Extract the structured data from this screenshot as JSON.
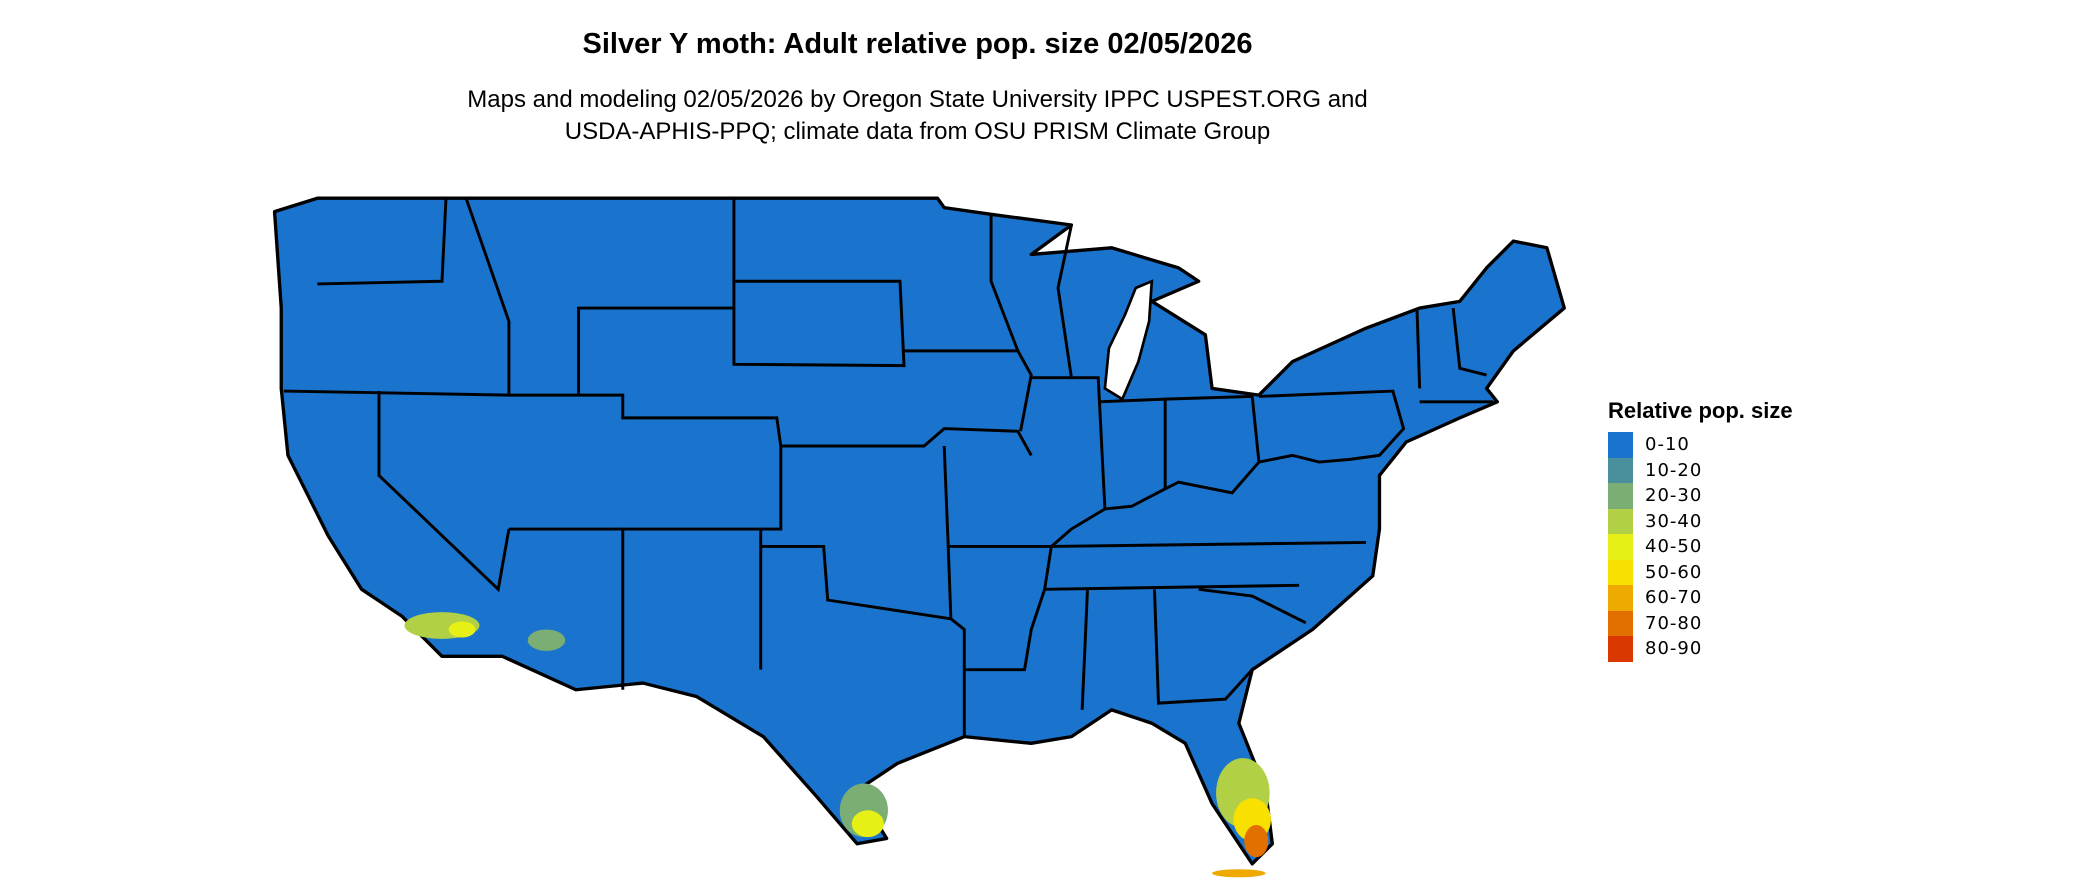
{
  "title": "Silver Y moth: Adult relative pop. size 02/05/2026",
  "subtitle_lines": [
    "Maps and modeling 02/05/2026 by Oregon State University IPPC USPEST.ORG and",
    "USDA-APHIS-PPQ; climate data from OSU PRISM Climate Group"
  ],
  "legend": {
    "title": "Relative pop. size",
    "items": [
      {
        "label": "0-10",
        "color": "#1a73cc"
      },
      {
        "label": "10-20",
        "color": "#4a8f9c"
      },
      {
        "label": "20-30",
        "color": "#7aae74"
      },
      {
        "label": "30-40",
        "color": "#b2d046"
      },
      {
        "label": "40-50",
        "color": "#e6ef16"
      },
      {
        "label": "50-60",
        "color": "#f8e000"
      },
      {
        "label": "60-70",
        "color": "#eeaa00"
      },
      {
        "label": "70-80",
        "color": "#e27000"
      },
      {
        "label": "80-90",
        "color": "#da3800"
      }
    ]
  },
  "map": {
    "region": "Contiguous United States",
    "base_color": "#1a73cc",
    "hotspots": [
      "Southern California",
      "Southern Arizona",
      "South Texas",
      "South Florida"
    ]
  }
}
